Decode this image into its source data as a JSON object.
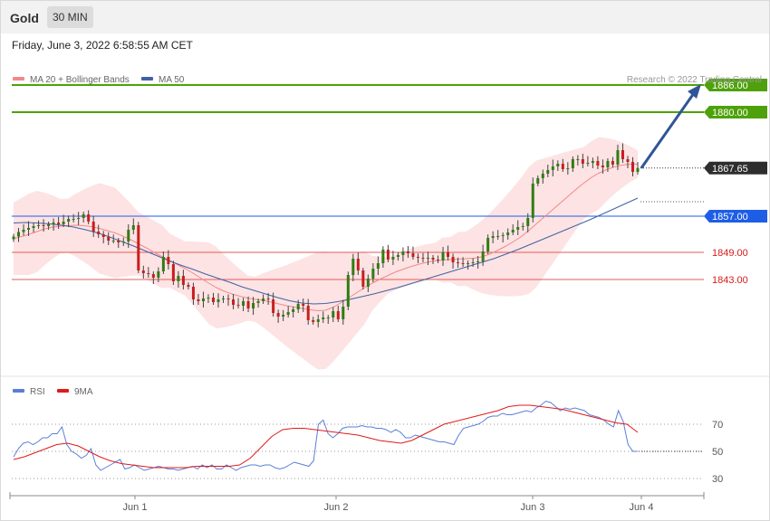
{
  "header": {
    "symbol": "Gold",
    "timeframe": "30 MIN",
    "datetime": "Friday, June 3, 2022 6:58:55 AM CET"
  },
  "credit": "Research © 2022 Trading Central",
  "legend": {
    "bands_label": "MA 20 + Bollinger Bands",
    "ma50_label": "MA 50",
    "rsi_label": "RSI",
    "rsi_ma_label": "9MA"
  },
  "colors": {
    "green": "#4ea10a",
    "blue_level": "#1e5ee6",
    "red_level": "#e25b5b",
    "current": "#2e2e2e",
    "candle_up": "#2f7d12",
    "candle_down": "#c81e1e",
    "band_fill": "#fde0e0",
    "ma20": "#f08a8a",
    "ma50": "#3f62a4",
    "arrow": "#2f5597",
    "rsi": "#5b7fd6",
    "rsi_ma": "#e01b1b"
  },
  "chart_data": [
    {
      "type": "candlestick",
      "title": "Gold",
      "timeframe": "30 MIN",
      "x_ticks": [
        "Jun 1",
        "Jun 2",
        "Jun 3",
        "Jun 4"
      ],
      "ylim": [
        1835,
        1890
      ],
      "candle_count": 126,
      "close": [
        1852.5,
        1853.5,
        1854.0,
        1854.4,
        1854.8,
        1855.0,
        1854.8,
        1855.2,
        1855.6,
        1855.2,
        1855.8,
        1856.4,
        1856.4,
        1856.6,
        1857.4,
        1855.8,
        1853.6,
        1853.0,
        1852.4,
        1851.6,
        1851.6,
        1851.2,
        1851.4,
        1854.0,
        1855.0,
        1845.0,
        1844.4,
        1844.2,
        1843.4,
        1844.8,
        1848.0,
        1846.4,
        1842.6,
        1843.8,
        1841.8,
        1841.4,
        1838.6,
        1838.2,
        1838.8,
        1839.0,
        1838.0,
        1838.6,
        1838.8,
        1838.6,
        1837.4,
        1837.2,
        1838.2,
        1836.6,
        1837.8,
        1838.2,
        1838.8,
        1838.6,
        1835.6,
        1834.8,
        1835.2,
        1835.8,
        1836.4,
        1837.6,
        1837.2,
        1834.0,
        1833.6,
        1834.2,
        1834.6,
        1834.6,
        1836.0,
        1834.2,
        1837.0,
        1844.0,
        1847.6,
        1845.0,
        1841.4,
        1843.2,
        1845.4,
        1846.6,
        1849.6,
        1847.4,
        1848.0,
        1848.4,
        1849.2,
        1848.8,
        1848.0,
        1847.8,
        1847.6,
        1847.8,
        1847.4,
        1847.2,
        1849.0,
        1848.0,
        1846.8,
        1846.6,
        1846.4,
        1846.6,
        1846.8,
        1847.0,
        1849.2,
        1852.2,
        1852.6,
        1852.6,
        1852.8,
        1853.4,
        1854.0,
        1854.6,
        1854.8,
        1856.6,
        1864.2,
        1865.4,
        1866.4,
        1867.2,
        1868.0,
        1868.6,
        1867.4,
        1867.6,
        1869.6,
        1869.6,
        1868.6,
        1868.8,
        1869.2,
        1868.2,
        1867.8,
        1869.2,
        1868.4,
        1871.6,
        1869.6,
        1869.0,
        1866.8,
        1867.65
      ],
      "ma20": [
        1852.0,
        1852.5,
        1853.0,
        1853.6,
        1854.2,
        1854.6,
        1854.8,
        1854.9,
        1855.0,
        1854.9,
        1854.7,
        1854.3,
        1853.8,
        1853.3,
        1852.6,
        1851.8,
        1850.9,
        1850.0,
        1849.0,
        1848.1,
        1847.2,
        1846.3,
        1845.4,
        1844.4,
        1843.3,
        1842.2,
        1841.2,
        1840.4,
        1839.8,
        1839.3,
        1838.9,
        1838.6,
        1838.4,
        1838.0,
        1837.6,
        1837.2,
        1836.9,
        1836.6,
        1836.3,
        1836.1,
        1836.2,
        1836.9,
        1837.9,
        1839.0,
        1840.1,
        1841.2,
        1842.2,
        1843.1,
        1843.9,
        1844.7,
        1845.3,
        1845.9,
        1846.4,
        1846.8,
        1847.1,
        1847.3,
        1847.4,
        1847.5,
        1847.6,
        1847.7,
        1848.0,
        1848.6,
        1849.4,
        1850.3,
        1851.3,
        1852.4,
        1853.8,
        1855.3,
        1856.8,
        1858.3,
        1859.8,
        1861.3,
        1862.8,
        1864.2,
        1865.5,
        1866.5,
        1867.3,
        1867.9,
        1868.3,
        1868.5,
        1868.5
      ],
      "ma50": [
        1855.5,
        1855.6,
        1855.5,
        1855.3,
        1855.0,
        1854.6,
        1854.0,
        1853.3,
        1852.4,
        1851.4,
        1850.4,
        1849.3,
        1848.2,
        1847.1,
        1846.1,
        1845.2,
        1844.2,
        1843.3,
        1842.4,
        1841.4,
        1840.6,
        1839.8,
        1839.0,
        1838.3,
        1837.8,
        1837.6,
        1837.7,
        1838.1,
        1838.6,
        1839.2,
        1839.8,
        1840.5,
        1841.2,
        1842.0,
        1842.8,
        1843.6,
        1844.4,
        1845.2,
        1846.0,
        1846.8,
        1847.6,
        1848.6,
        1849.6,
        1850.7,
        1851.8,
        1852.9,
        1854.0,
        1855.1,
        1856.2,
        1857.4,
        1858.6,
        1859.8,
        1861.0
      ],
      "resistance_levels": [
        1886.0,
        1880.0
      ],
      "current_price": 1867.65,
      "pivot": 1857.0,
      "support_levels": [
        1849.0,
        1843.0
      ],
      "projection_arrow": {
        "from": 1867.65,
        "to": 1886.0
      },
      "legend": [
        "MA 20 + Bollinger Bands",
        "MA 50"
      ]
    },
    {
      "type": "line",
      "title": "RSI",
      "series": [
        {
          "name": "RSI",
          "values": [
            46,
            52,
            56,
            57,
            55,
            57,
            60,
            60,
            63,
            63,
            68,
            55,
            50,
            48,
            45,
            47,
            52,
            40,
            36,
            38,
            40,
            42,
            44,
            37,
            38,
            40,
            38,
            36,
            37,
            38,
            39,
            38,
            37,
            37,
            36,
            37,
            38,
            39,
            37,
            40,
            38,
            40,
            37,
            37,
            40,
            38,
            36,
            38,
            39,
            40,
            40,
            39,
            40,
            40,
            38,
            37,
            38,
            40,
            42,
            41,
            40,
            39,
            43,
            70,
            73,
            63,
            60,
            63,
            67,
            68,
            68,
            68,
            69,
            68,
            68,
            67,
            67,
            66,
            64,
            66,
            64,
            60,
            60,
            62,
            61,
            60,
            59,
            58,
            57,
            57,
            56,
            55,
            62,
            67,
            68,
            69,
            70,
            72,
            75,
            76,
            76,
            78,
            77,
            77,
            78,
            79,
            80,
            79,
            82,
            84,
            87,
            86,
            83,
            80,
            82,
            81,
            82,
            81,
            80,
            77,
            76,
            75,
            73,
            70,
            68,
            80,
            72,
            55,
            50,
            50
          ]
        },
        {
          "name": "9MA",
          "values": [
            44,
            46,
            49,
            52,
            55,
            56,
            54,
            50,
            46,
            43,
            41,
            40,
            39,
            38,
            38,
            38,
            38,
            39,
            39,
            39,
            39,
            40,
            45,
            53,
            61,
            66,
            67,
            67,
            66,
            65,
            64,
            63,
            62,
            60,
            58,
            57,
            56,
            58,
            62,
            66,
            70,
            72,
            74,
            76,
            78,
            80,
            83,
            84,
            84,
            83,
            82,
            81,
            79,
            77,
            75,
            73,
            71,
            70,
            64
          ]
        }
      ],
      "reference_lines": [
        70,
        50,
        30
      ],
      "legend": [
        "RSI",
        "9MA"
      ]
    }
  ]
}
